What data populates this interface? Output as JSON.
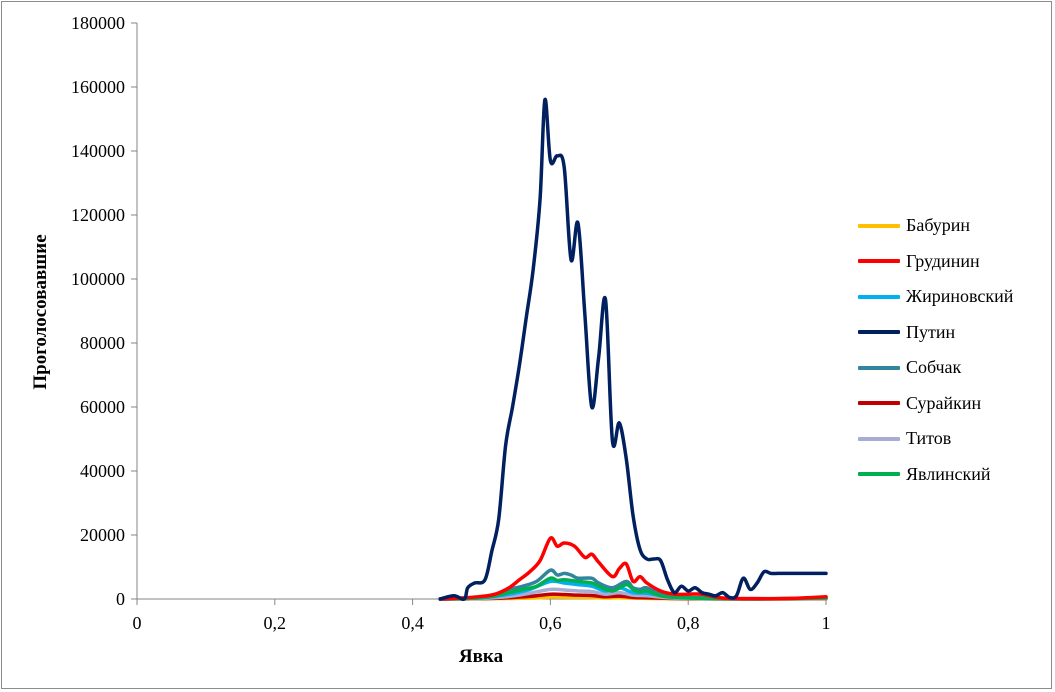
{
  "chart_data": {
    "type": "line",
    "title": "",
    "xlabel": "Явка",
    "ylabel": "Проголосовавшие",
    "xlim": [
      0,
      1
    ],
    "ylim": [
      0,
      180000
    ],
    "x_ticks": [
      "0",
      "0,2",
      "0,4",
      "0,6",
      "0,8",
      "1"
    ],
    "x_tick_values": [
      0,
      0.2,
      0.4,
      0.6,
      0.8,
      1
    ],
    "y_ticks": [
      "0",
      "20000",
      "40000",
      "60000",
      "80000",
      "100000",
      "120000",
      "140000",
      "160000",
      "180000"
    ],
    "y_tick_values": [
      0,
      20000,
      40000,
      60000,
      80000,
      100000,
      120000,
      140000,
      160000,
      180000
    ],
    "legend_position": "right",
    "grid": false,
    "series": [
      {
        "name": "Бабурин",
        "color": "#FFC000",
        "x": [
          0.44,
          0.48,
          0.52,
          0.55,
          0.58,
          0.6,
          0.62,
          0.64,
          0.66,
          0.68,
          0.7,
          0.72,
          0.74,
          0.77,
          0.8,
          0.85,
          0.9,
          0.95,
          1.0
        ],
        "y": [
          0,
          50,
          100,
          200,
          350,
          600,
          550,
          500,
          450,
          300,
          400,
          250,
          200,
          100,
          50,
          20,
          10,
          30,
          50
        ]
      },
      {
        "name": "Грудинин",
        "color": "#FF0000",
        "x": [
          0.44,
          0.47,
          0.5,
          0.52,
          0.54,
          0.555,
          0.57,
          0.585,
          0.6,
          0.61,
          0.62,
          0.635,
          0.65,
          0.66,
          0.67,
          0.69,
          0.7,
          0.71,
          0.72,
          0.73,
          0.74,
          0.76,
          0.78,
          0.8,
          0.82,
          0.85,
          0.9,
          0.95,
          1.0
        ],
        "y": [
          0,
          300,
          800,
          1500,
          3500,
          6000,
          8500,
          12000,
          19000,
          16500,
          17500,
          16500,
          13000,
          14000,
          11500,
          7000,
          9500,
          11000,
          5500,
          7000,
          5000,
          2500,
          1500,
          1500,
          1500,
          300,
          100,
          200,
          700
        ]
      },
      {
        "name": "Жириновский",
        "color": "#00B0F0",
        "x": [
          0.44,
          0.5,
          0.54,
          0.57,
          0.6,
          0.62,
          0.64,
          0.66,
          0.68,
          0.7,
          0.72,
          0.74,
          0.77,
          0.8,
          0.85,
          0.9,
          0.95,
          1.0
        ],
        "y": [
          0,
          400,
          1500,
          3000,
          5500,
          5000,
          4500,
          4000,
          2500,
          3500,
          2000,
          1800,
          800,
          400,
          100,
          50,
          100,
          300
        ]
      },
      {
        "name": "Путин",
        "color": "#002060",
        "x": [
          0.44,
          0.46,
          0.475,
          0.48,
          0.49,
          0.505,
          0.515,
          0.525,
          0.535,
          0.545,
          0.555,
          0.565,
          0.575,
          0.585,
          0.592,
          0.6,
          0.61,
          0.62,
          0.63,
          0.64,
          0.65,
          0.66,
          0.67,
          0.68,
          0.69,
          0.7,
          0.71,
          0.72,
          0.73,
          0.74,
          0.75,
          0.76,
          0.77,
          0.78,
          0.79,
          0.8,
          0.81,
          0.82,
          0.83,
          0.84,
          0.85,
          0.86,
          0.87,
          0.88,
          0.89,
          0.9,
          0.91,
          0.92,
          0.93,
          0.94,
          0.95,
          0.96,
          0.97,
          0.98,
          0.99,
          1.0
        ],
        "y": [
          0,
          1000,
          0,
          3500,
          5000,
          6000,
          15000,
          25000,
          48000,
          60000,
          73000,
          88000,
          103000,
          125000,
          156000,
          137000,
          138500,
          135000,
          106000,
          117500,
          89000,
          60000,
          75500,
          93500,
          49500,
          55000,
          44000,
          26000,
          15500,
          12500,
          12500,
          12000,
          6000,
          2000,
          4000,
          2500,
          3500,
          2000,
          1500,
          1000,
          2000,
          500,
          1000,
          6500,
          3000,
          5000,
          8500,
          8000,
          8000,
          8000,
          8000,
          8000,
          8000,
          8000,
          8000,
          8000
        ]
      },
      {
        "name": "Собчак",
        "color": "#31859C",
        "x": [
          0.44,
          0.48,
          0.5,
          0.52,
          0.54,
          0.56,
          0.58,
          0.6,
          0.61,
          0.62,
          0.63,
          0.64,
          0.66,
          0.67,
          0.69,
          0.71,
          0.72,
          0.73,
          0.74,
          0.76,
          0.78,
          0.8,
          0.85,
          0.9,
          0.95,
          1.0
        ],
        "y": [
          0,
          200,
          600,
          1500,
          3000,
          4000,
          5500,
          9000,
          7500,
          8000,
          7500,
          6500,
          6500,
          5000,
          3500,
          5500,
          3500,
          3000,
          3500,
          1500,
          800,
          500,
          200,
          100,
          200,
          500
        ]
      },
      {
        "name": "Сурайкин",
        "color": "#C00000",
        "x": [
          0.44,
          0.5,
          0.54,
          0.57,
          0.6,
          0.62,
          0.64,
          0.66,
          0.68,
          0.7,
          0.72,
          0.74,
          0.77,
          0.8,
          0.85,
          0.9,
          0.95,
          1.0
        ],
        "y": [
          0,
          100,
          400,
          800,
          1500,
          1400,
          1200,
          1100,
          700,
          900,
          500,
          400,
          200,
          100,
          30,
          20,
          50,
          100
        ]
      },
      {
        "name": "Титов",
        "color": "#A6ACD6",
        "x": [
          0.44,
          0.5,
          0.54,
          0.57,
          0.6,
          0.62,
          0.64,
          0.66,
          0.68,
          0.7,
          0.72,
          0.74,
          0.77,
          0.8,
          0.85,
          0.9,
          0.95,
          1.0
        ],
        "y": [
          0,
          200,
          800,
          1800,
          3000,
          2800,
          2500,
          2300,
          1500,
          2000,
          1200,
          1000,
          400,
          200,
          50,
          30,
          80,
          150
        ]
      },
      {
        "name": "Явлинский",
        "color": "#00B050",
        "x": [
          0.44,
          0.48,
          0.5,
          0.52,
          0.54,
          0.56,
          0.58,
          0.6,
          0.61,
          0.62,
          0.64,
          0.66,
          0.67,
          0.69,
          0.71,
          0.72,
          0.73,
          0.74,
          0.76,
          0.78,
          0.8,
          0.85,
          0.9,
          0.95,
          1.0
        ],
        "y": [
          0,
          150,
          400,
          1000,
          2000,
          3000,
          4000,
          6500,
          5800,
          6000,
          5500,
          5000,
          4000,
          2500,
          4500,
          3000,
          2200,
          2500,
          1000,
          500,
          300,
          100,
          50,
          100,
          300
        ]
      }
    ]
  }
}
